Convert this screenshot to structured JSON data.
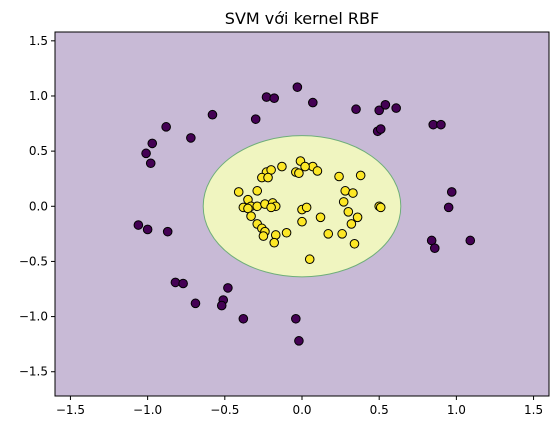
{
  "chart_data": {
    "type": "scatter",
    "title": "SVM với kernel RBF",
    "xlabel": "",
    "ylabel": "",
    "xlim": [
      -1.6,
      1.6
    ],
    "ylim": [
      -1.72,
      1.58
    ],
    "xticks": [
      -1.5,
      -1.0,
      -0.5,
      0.0,
      0.5,
      1.0,
      1.5
    ],
    "xtick_labels": [
      "−1.5",
      "−1.0",
      "−0.5",
      "0.0",
      "0.5",
      "1.0",
      "1.5"
    ],
    "yticks": [
      -1.5,
      -1.0,
      -0.5,
      0.0,
      0.5,
      1.0,
      1.5
    ],
    "ytick_labels": [
      "−1.5",
      "−1.0",
      "−0.5",
      "0.0",
      "0.5",
      "1.0",
      "1.5"
    ],
    "grid": false,
    "decision_region": {
      "center": [
        0.0,
        0.0
      ],
      "radius_x": 0.64,
      "radius_y": 0.64,
      "inner_color": "#f0f5c0",
      "outer_color": "#c8bad6",
      "boundary_color": "#6fae7a"
    },
    "series": [
      {
        "class": 0,
        "color": "#440154",
        "points": [
          [
            -0.23,
            0.99
          ],
          [
            -0.18,
            0.98
          ],
          [
            -0.03,
            1.08
          ],
          [
            0.07,
            0.94
          ],
          [
            -0.58,
            0.83
          ],
          [
            -0.3,
            0.79
          ],
          [
            0.35,
            0.88
          ],
          [
            0.5,
            0.87
          ],
          [
            0.54,
            0.92
          ],
          [
            0.61,
            0.89
          ],
          [
            -0.88,
            0.72
          ],
          [
            -0.72,
            0.62
          ],
          [
            -0.97,
            0.57
          ],
          [
            -1.01,
            0.48
          ],
          [
            -0.98,
            0.39
          ],
          [
            0.49,
            0.68
          ],
          [
            0.51,
            0.7
          ],
          [
            0.85,
            0.74
          ],
          [
            0.9,
            0.74
          ],
          [
            0.97,
            0.13
          ],
          [
            0.95,
            -0.01
          ],
          [
            -1.06,
            -0.17
          ],
          [
            -1.0,
            -0.21
          ],
          [
            -0.87,
            -0.23
          ],
          [
            0.84,
            -0.31
          ],
          [
            0.86,
            -0.38
          ],
          [
            1.09,
            -0.31
          ],
          [
            -0.82,
            -0.69
          ],
          [
            -0.77,
            -0.7
          ],
          [
            -0.69,
            -0.88
          ],
          [
            -0.48,
            -0.74
          ],
          [
            -0.51,
            -0.85
          ],
          [
            -0.52,
            -0.9
          ],
          [
            -0.38,
            -1.02
          ],
          [
            -0.04,
            -1.02
          ],
          [
            -0.02,
            -1.22
          ]
        ]
      },
      {
        "class": 1,
        "color": "#fde725",
        "points": [
          [
            -0.01,
            0.41
          ],
          [
            -0.23,
            0.31
          ],
          [
            -0.2,
            0.33
          ],
          [
            -0.13,
            0.36
          ],
          [
            0.07,
            0.36
          ],
          [
            -0.04,
            0.31
          ],
          [
            -0.26,
            0.26
          ],
          [
            -0.22,
            0.26
          ],
          [
            0.02,
            0.36
          ],
          [
            -0.02,
            0.3
          ],
          [
            0.1,
            0.32
          ],
          [
            0.24,
            0.27
          ],
          [
            0.38,
            0.28
          ],
          [
            -0.41,
            0.13
          ],
          [
            -0.29,
            0.14
          ],
          [
            -0.35,
            0.06
          ],
          [
            0.28,
            0.14
          ],
          [
            0.33,
            0.12
          ],
          [
            -0.38,
            -0.01
          ],
          [
            -0.33,
            0.0
          ],
          [
            -0.35,
            -0.02
          ],
          [
            -0.29,
            0.0
          ],
          [
            -0.24,
            0.02
          ],
          [
            -0.19,
            0.03
          ],
          [
            -0.17,
            0.0
          ],
          [
            -0.2,
            -0.01
          ],
          [
            0.0,
            -0.03
          ],
          [
            0.03,
            -0.01
          ],
          [
            0.12,
            -0.1
          ],
          [
            0.27,
            0.04
          ],
          [
            0.3,
            -0.05
          ],
          [
            0.36,
            -0.1
          ],
          [
            0.5,
            0.0
          ],
          [
            0.51,
            -0.01
          ],
          [
            -0.33,
            -0.09
          ],
          [
            -0.29,
            -0.16
          ],
          [
            -0.26,
            -0.2
          ],
          [
            -0.24,
            -0.23
          ],
          [
            -0.17,
            -0.26
          ],
          [
            0.0,
            -0.14
          ],
          [
            -0.25,
            -0.27
          ],
          [
            -0.18,
            -0.33
          ],
          [
            -0.1,
            -0.24
          ],
          [
            0.17,
            -0.25
          ],
          [
            0.26,
            -0.25
          ],
          [
            0.32,
            -0.16
          ],
          [
            0.34,
            -0.34
          ],
          [
            0.05,
            -0.48
          ]
        ]
      }
    ]
  }
}
